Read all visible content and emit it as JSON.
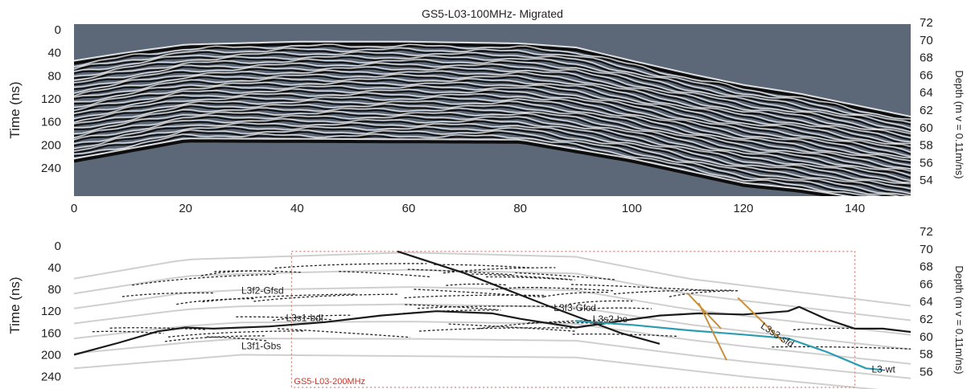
{
  "chart_data": [
    {
      "type": "heatmap",
      "title": "GS5-L03-100MHz- Migrated",
      "ylabel": "Time (ns)",
      "y2label": "Depth (m v = 0.11m/ns)",
      "xlim": [
        0,
        150
      ],
      "ylim": [
        0,
        290
      ],
      "x_ticks": [
        "0",
        "20",
        "40",
        "60",
        "80",
        "100",
        "120",
        "140"
      ],
      "y_ticks": [
        "0",
        "40",
        "80",
        "120",
        "160",
        "200",
        "240"
      ],
      "y2_ticks": [
        "72",
        "70",
        "68",
        "66",
        "64",
        "62",
        "60",
        "58",
        "56",
        "54"
      ],
      "surface_time_ns": [
        {
          "x": 0,
          "y": 58
        },
        {
          "x": 10,
          "y": 43
        },
        {
          "x": 20,
          "y": 30
        },
        {
          "x": 40,
          "y": 25
        },
        {
          "x": 60,
          "y": 25
        },
        {
          "x": 80,
          "y": 28
        },
        {
          "x": 90,
          "y": 35
        },
        {
          "x": 100,
          "y": 58
        },
        {
          "x": 110,
          "y": 80
        },
        {
          "x": 120,
          "y": 100
        },
        {
          "x": 130,
          "y": 115
        },
        {
          "x": 140,
          "y": 135
        },
        {
          "x": 150,
          "y": 155
        }
      ],
      "base_time_ns": [
        {
          "x": 0,
          "y": 228
        },
        {
          "x": 20,
          "y": 193
        },
        {
          "x": 80,
          "y": 195
        },
        {
          "x": 100,
          "y": 228
        },
        {
          "x": 120,
          "y": 270
        },
        {
          "x": 130,
          "y": 280
        },
        {
          "x": 140,
          "y": 295
        },
        {
          "x": 150,
          "y": 310
        }
      ],
      "colors": {
        "background": "#5c6878",
        "reflector_dark": "#0d0d0d",
        "reflector_light": "#f2f2f2"
      }
    },
    {
      "type": "line",
      "title": "",
      "ylabel": "Time (ns)",
      "y2label": "Depth (m v = 0.11m/ns)",
      "xlim": [
        0,
        150
      ],
      "ylim": [
        0,
        260
      ],
      "y_ticks": [
        "0",
        "40",
        "80",
        "120",
        "160",
        "200",
        "240"
      ],
      "y2_ticks": [
        "72",
        "70",
        "68",
        "66",
        "64",
        "62",
        "60",
        "58",
        "56"
      ],
      "inset_label": "GS5-L03-200MHz",
      "inset_box": {
        "x": [
          39,
          140
        ],
        "y": [
          10,
          260
        ]
      },
      "labels": [
        {
          "text": "L3f2-Gfsd",
          "x": 30,
          "y": 88
        },
        {
          "text": "L3s1-bdl",
          "x": 38,
          "y": 138
        },
        {
          "text": "L3f1-Gbs",
          "x": 30,
          "y": 190
        },
        {
          "text": "L3f3-Gfcd",
          "x": 86,
          "y": 120
        },
        {
          "text": "L3s2-be",
          "x": 93,
          "y": 140
        },
        {
          "text": "L3s3-sfd",
          "x": 123,
          "y": 150
        },
        {
          "text": "L3-wt",
          "x": 143,
          "y": 233
        }
      ],
      "series": [
        {
          "name": "L3s1-bdl",
          "style": "solid",
          "color": "#1a1a1a",
          "x": [
            0,
            8,
            15,
            20,
            25,
            35,
            45,
            55,
            65,
            75,
            80,
            90,
            100,
            105,
            112,
            120,
            128,
            130,
            135,
            140,
            145,
            150
          ],
          "y": [
            200,
            178,
            157,
            150,
            152,
            148,
            140,
            128,
            120,
            124,
            134,
            150,
            135,
            128,
            124,
            126,
            120,
            112,
            135,
            152,
            152,
            158
          ]
        },
        {
          "name": "",
          "style": "solid",
          "color": "#1a1a1a",
          "x": [
            58,
            70,
            85,
            98,
            105
          ],
          "y": [
            10,
            50,
            110,
            160,
            180
          ]
        },
        {
          "name": "L3-wt",
          "style": "solid",
          "color": "#2a9db0",
          "x": [
            90,
            100,
            110,
            120,
            128,
            135,
            142,
            145
          ],
          "y": [
            138,
            145,
            155,
            163,
            170,
            195,
            225,
            228
          ]
        },
        {
          "name": "",
          "style": "solid",
          "color": "#c8903a",
          "x": [
            110,
            116
          ],
          "y": [
            87,
            152
          ]
        },
        {
          "name": "",
          "style": "solid",
          "color": "#c8903a",
          "x": [
            112,
            117
          ],
          "y": [
            105,
            210
          ]
        },
        {
          "name": "",
          "style": "solid",
          "color": "#c8903a",
          "x": [
            119,
            127
          ],
          "y": [
            95,
            175
          ]
        }
      ],
      "colors": {
        "ghost_lines": "#cfcfcf",
        "dashed": "#222222",
        "box": "#d08070"
      }
    }
  ]
}
